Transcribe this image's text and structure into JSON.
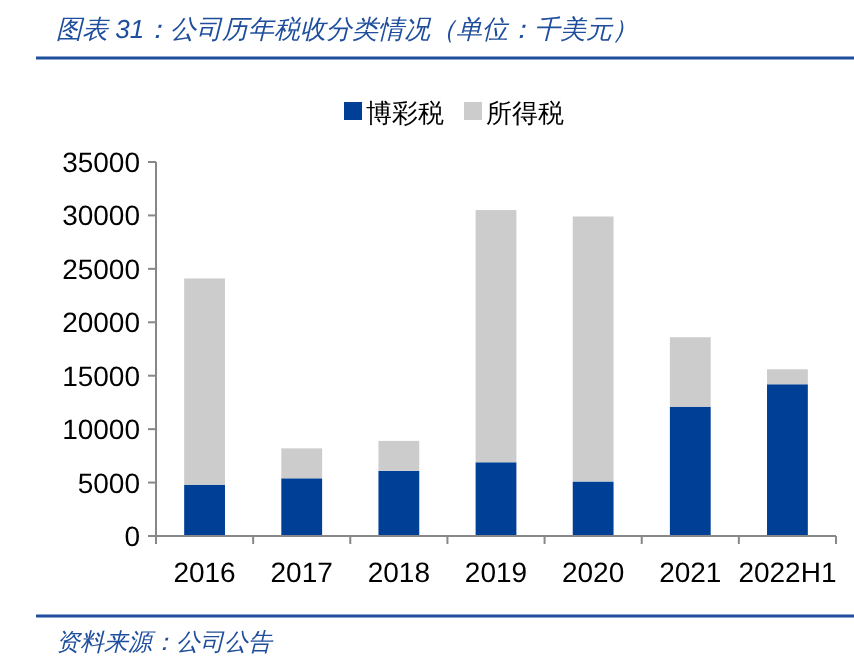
{
  "chart_data": {
    "type": "bar",
    "stacked": true,
    "title": "图表 31：公司历年税收分类情况（单位：千美元）",
    "annotations": [
      "资料来源：公司公告"
    ],
    "categories": [
      "2016",
      "2017",
      "2018",
      "2019",
      "2020",
      "2021",
      "2022H1"
    ],
    "series": [
      {
        "name": "博彩税",
        "color": "#003f96",
        "values": [
          4800,
          5400,
          6100,
          6900,
          5100,
          12100,
          14200
        ]
      },
      {
        "name": "所得税",
        "color": "#cccccc",
        "values": [
          19300,
          2800,
          2800,
          23600,
          24800,
          6500,
          1400
        ]
      }
    ],
    "ylim": [
      0,
      35000
    ],
    "yticks": [
      0,
      5000,
      10000,
      15000,
      20000,
      25000,
      30000,
      35000
    ],
    "grid": false,
    "legend": "top"
  }
}
